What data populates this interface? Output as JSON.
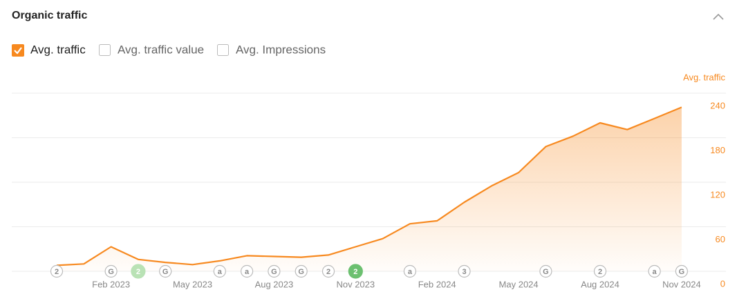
{
  "header": {
    "title": "Organic traffic"
  },
  "controls": [
    {
      "label": "Avg. traffic",
      "checked": true
    },
    {
      "label": "Avg. traffic value",
      "checked": false
    },
    {
      "label": "Avg. Impressions",
      "checked": false
    }
  ],
  "chart_data": {
    "type": "area",
    "y_axis_label": "Avg. traffic",
    "color": "#f7891f",
    "categories": [
      null,
      null,
      "Feb 2023",
      null,
      null,
      "May 2023",
      null,
      null,
      "Aug 2023",
      null,
      null,
      "Nov 2023",
      null,
      null,
      "Feb 2024",
      null,
      null,
      "May 2024",
      null,
      null,
      "Aug 2024",
      null,
      null,
      "Nov 2024"
    ],
    "values": [
      8,
      10,
      33,
      16,
      12,
      9,
      14,
      21,
      20,
      19,
      22,
      33,
      44,
      64,
      68,
      93,
      115,
      133,
      168,
      182,
      200,
      191,
      206,
      221
    ],
    "markers": [
      "2",
      null,
      "G",
      {
        "label": "2",
        "color": "#b9e2b5"
      },
      "G",
      null,
      "a",
      "a",
      "G",
      "G",
      "2",
      {
        "label": "2",
        "color": "#6cc070"
      },
      null,
      "a",
      null,
      "3",
      null,
      null,
      "G",
      null,
      "2",
      null,
      "a",
      "G"
    ],
    "ylim": [
      0,
      240
    ],
    "yticks": [
      0,
      60,
      120,
      180,
      240
    ],
    "grid": true
  }
}
